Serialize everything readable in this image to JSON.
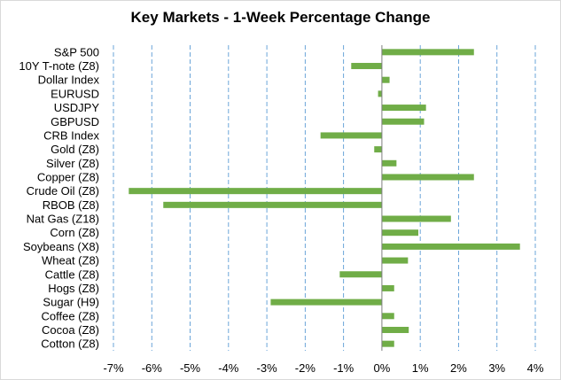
{
  "chart_data": {
    "type": "bar",
    "orientation": "horizontal",
    "title": "Key Markets - 1-Week Percentage Change",
    "xlabel": "",
    "ylabel": "",
    "xlim": [
      -7,
      4
    ],
    "x_ticks": [
      -7,
      -6,
      -5,
      -4,
      -3,
      -2,
      -1,
      0,
      1,
      2,
      3,
      4
    ],
    "x_tick_labels": [
      "-7%",
      "-6%",
      "-5%",
      "-4%",
      "-3%",
      "-2%",
      "-1%",
      "0%",
      "1%",
      "2%",
      "3%",
      "4%"
    ],
    "grid": "vertical dashed",
    "legend": "none",
    "bar_color": "#70ad47",
    "grid_color": "#5b9bd5",
    "categories": [
      "S&P 500",
      "10Y T-note (Z8)",
      "Dollar Index",
      "EURUSD",
      "USDJPY",
      "GBPUSD",
      "CRB Index",
      "Gold (Z8)",
      "Silver (Z8)",
      "Copper (Z8)",
      "Crude Oil (Z8)",
      "RBOB (Z8)",
      "Nat Gas (Z18)",
      "Corn (Z8)",
      "Soybeans (X8)",
      "Wheat (Z8)",
      "Cattle (Z8)",
      "Hogs (Z8)",
      "Sugar (H9)",
      "Coffee (Z8)",
      "Cocoa (Z8)",
      "Cotton (Z8)"
    ],
    "values": [
      2.4,
      -0.8,
      0.2,
      -0.1,
      1.15,
      1.1,
      -1.6,
      -0.2,
      0.38,
      2.4,
      -6.6,
      -5.7,
      1.8,
      0.95,
      3.6,
      0.68,
      -1.1,
      0.32,
      -2.9,
      0.32,
      0.7,
      0.32
    ]
  }
}
